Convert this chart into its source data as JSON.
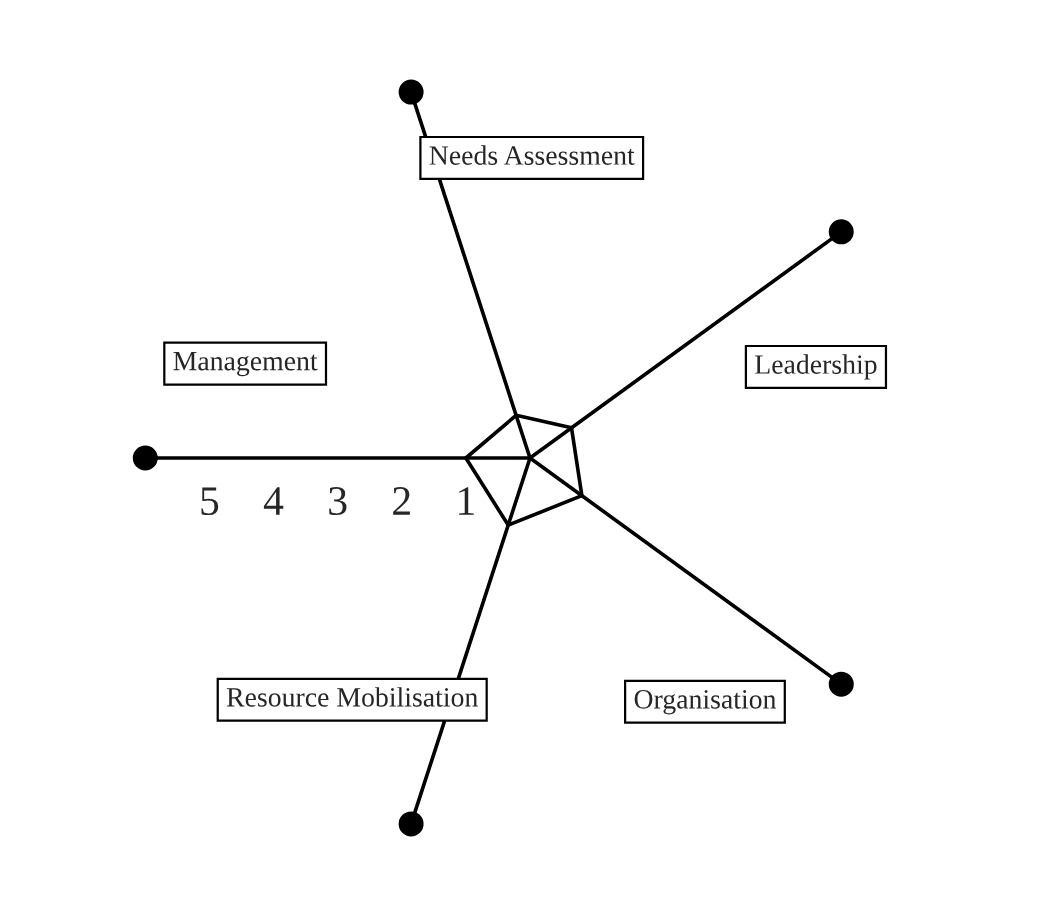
{
  "chart_data": {
    "type": "radar",
    "categories": [
      "Needs Assessment",
      "Leadership",
      "Organisation",
      "Resource Mobilisation",
      "Management"
    ],
    "series": [
      {
        "color": "#000000",
        "values": [
          0.7,
          0.8,
          1,
          1.1,
          1
        ]
      }
    ],
    "ylim": [
      0,
      6
    ],
    "yticks": [
      1,
      2,
      3,
      4,
      5
    ],
    "grid": true,
    "marker": "none",
    "line_style": "solid"
  }
}
